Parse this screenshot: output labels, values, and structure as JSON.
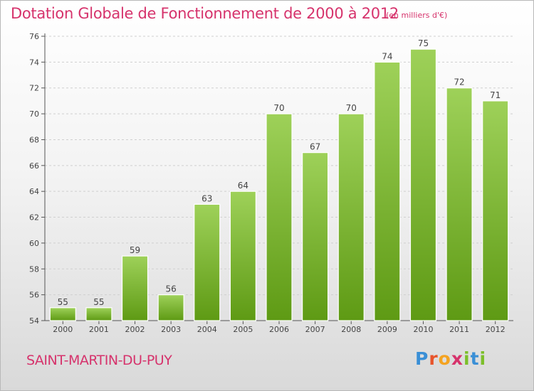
{
  "header": {
    "title": "Dotation Globale de Fonctionnement de 2000 à 2012",
    "subtitle": "(en milliers d'€)"
  },
  "footer": {
    "commune": "SAINT-MARTIN-DU-PUY",
    "logo_text": "Proxiti",
    "logo_colors": [
      "#3a8fd6",
      "#e8542b",
      "#f4a321",
      "#d6336c",
      "#7cbf2a",
      "#3a8fd6",
      "#7cbf2a"
    ]
  },
  "colors": {
    "accent": "#d6336c",
    "bar_top": "#9ed159",
    "bar_bottom": "#5e9a14"
  },
  "chart_data": {
    "type": "bar",
    "title": "Dotation Globale de Fonctionnement de 2000 à 2012",
    "subtitle": "(en milliers d'€)",
    "categories": [
      "2000",
      "2001",
      "2002",
      "2003",
      "2004",
      "2005",
      "2006",
      "2007",
      "2008",
      "2009",
      "2010",
      "2011",
      "2012"
    ],
    "values": [
      55,
      55,
      59,
      56,
      63,
      64,
      70,
      67,
      70,
      74,
      75,
      72,
      71
    ],
    "ylim": [
      54,
      76
    ],
    "yticks": [
      54,
      56,
      58,
      60,
      62,
      64,
      66,
      68,
      70,
      72,
      74,
      76
    ],
    "grid": true,
    "data_labels": true
  }
}
